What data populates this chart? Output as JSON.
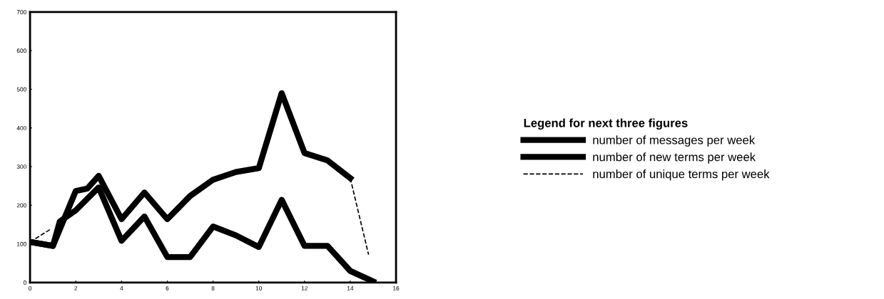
{
  "chart_data": {
    "type": "line",
    "legend_title": "Legend for next three figures",
    "legend": "right",
    "series": [
      {
        "name": "number of messages per week",
        "color": "#000000",
        "x": [
          0,
          1,
          2,
          2.5,
          3,
          4,
          5,
          6,
          7,
          8,
          9,
          10,
          11,
          12,
          13,
          14
        ],
        "values": [
          105,
          95,
          237,
          243,
          276,
          164,
          233,
          164,
          224,
          266,
          286,
          296,
          490,
          335,
          316,
          270
        ]
      },
      {
        "name": "number of new terms per week",
        "color": "#000000",
        "x": [
          0,
          1,
          1.3,
          2,
          3,
          4,
          5,
          6,
          7,
          8,
          9,
          10,
          11,
          12,
          13,
          14,
          15
        ],
        "values": [
          105,
          95,
          158,
          187,
          246,
          108,
          171,
          66,
          66,
          145,
          122,
          92,
          214,
          95,
          95,
          30,
          3
        ]
      },
      {
        "name": "number of unique terms per week",
        "color": "#000000",
        "line_style": "dashed",
        "x": [
          0,
          0.9,
          7,
          14,
          14.8
        ],
        "values": [
          105,
          138,
          null,
          270,
          72
        ]
      }
    ],
    "xlim": [
      0,
      16
    ],
    "xticks": [
      0,
      2,
      4,
      6,
      8,
      10,
      12,
      14,
      16
    ],
    "ylim": [
      0,
      700
    ],
    "yticks": [
      0,
      100,
      200,
      300,
      400,
      500,
      600,
      700
    ],
    "grid": false
  }
}
